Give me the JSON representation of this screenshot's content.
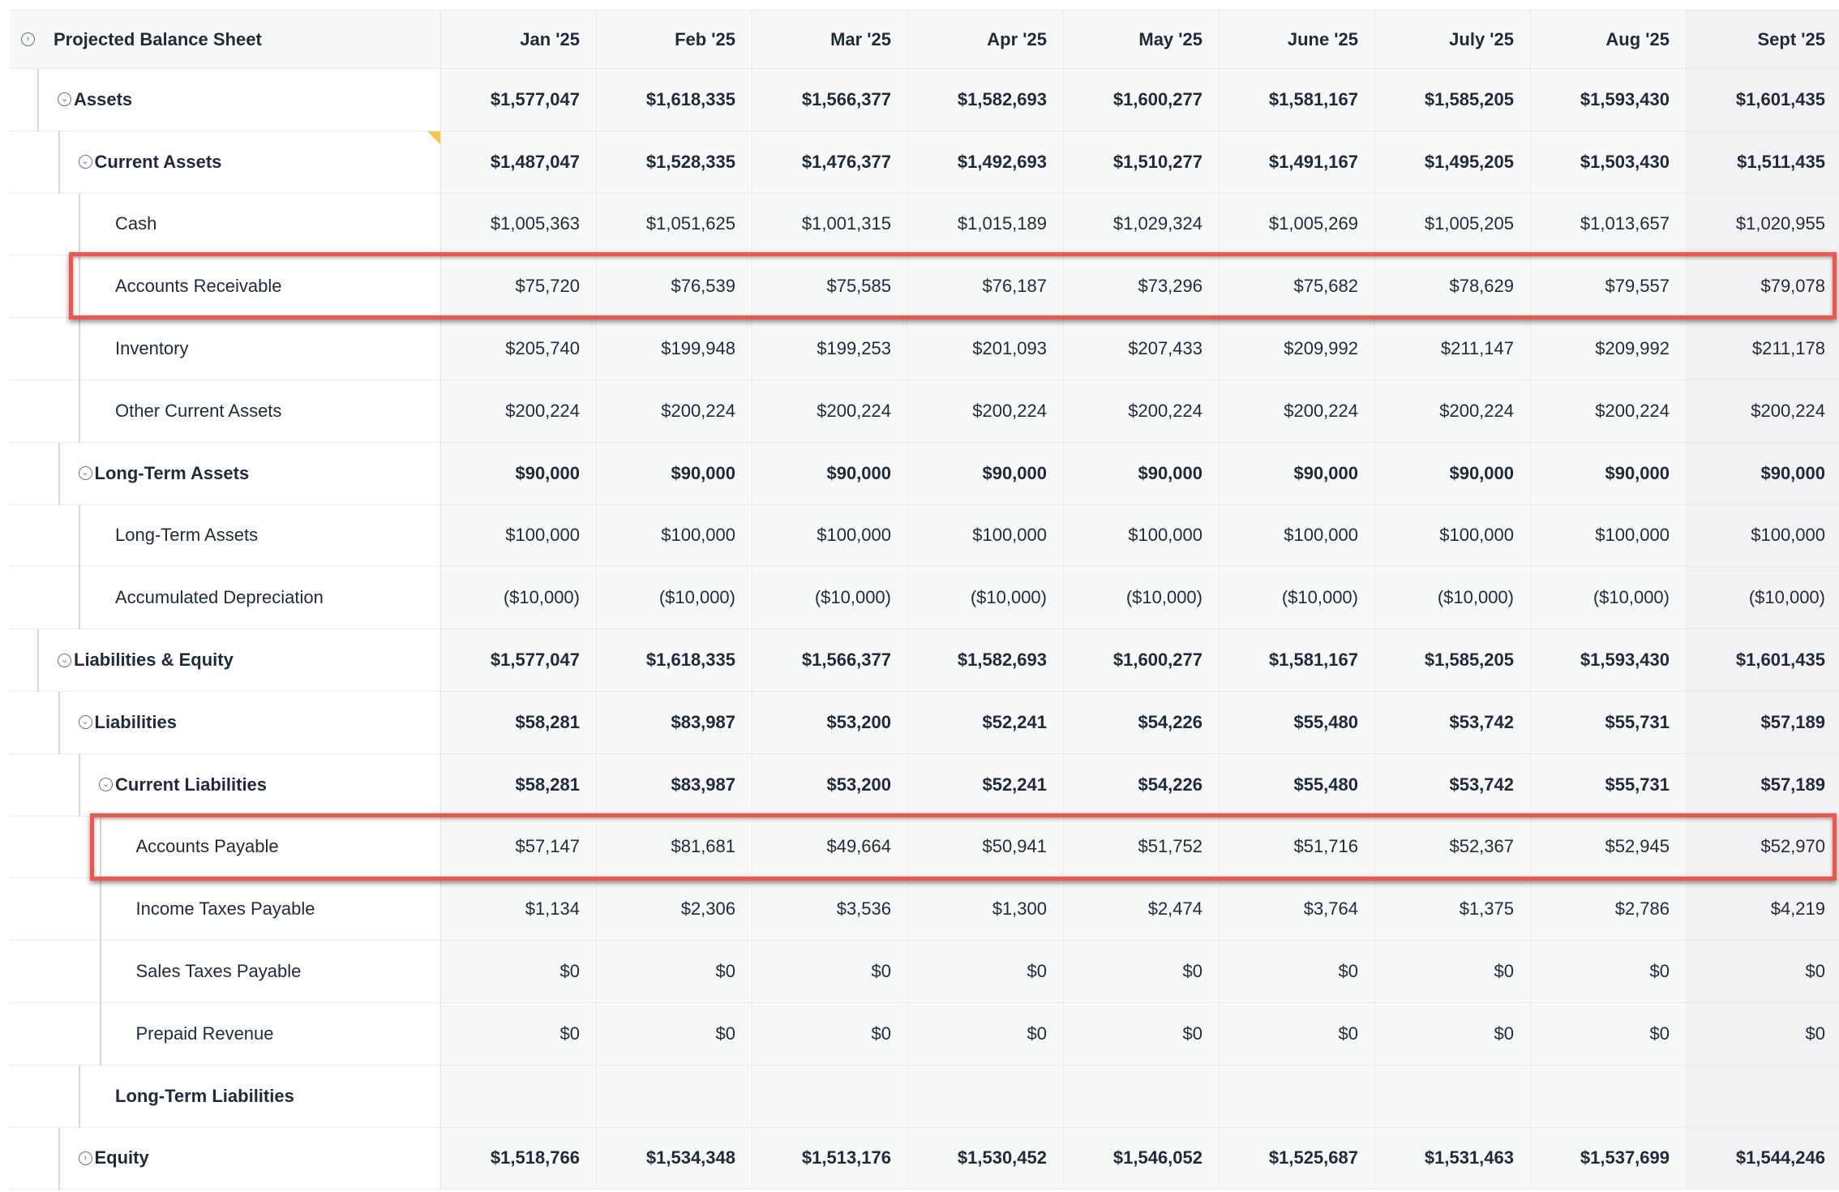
{
  "title": "Projected Balance Sheet",
  "columns": [
    "Jan '25",
    "Feb '25",
    "Mar '25",
    "Apr '25",
    "May '25",
    "June '25",
    "July '25",
    "Aug '25",
    "Sept '25"
  ],
  "colors": {
    "highlight": "#f2564a",
    "flag": "#f5c842"
  },
  "rows": [
    {
      "label": "Assets",
      "level": 1,
      "bold": true,
      "toggle": "expanded",
      "values": [
        "$1,577,047",
        "$1,618,335",
        "$1,566,377",
        "$1,582,693",
        "$1,600,277",
        "$1,581,167",
        "$1,585,205",
        "$1,593,430",
        "$1,601,435"
      ]
    },
    {
      "label": "Current Assets",
      "level": 2,
      "bold": true,
      "toggle": "expanded",
      "flag": true,
      "values": [
        "$1,487,047",
        "$1,528,335",
        "$1,476,377",
        "$1,492,693",
        "$1,510,277",
        "$1,491,167",
        "$1,495,205",
        "$1,503,430",
        "$1,511,435"
      ]
    },
    {
      "label": "Cash",
      "level": 3,
      "bold": false,
      "values": [
        "$1,005,363",
        "$1,051,625",
        "$1,001,315",
        "$1,015,189",
        "$1,029,324",
        "$1,005,269",
        "$1,005,205",
        "$1,013,657",
        "$1,020,955"
      ]
    },
    {
      "label": "Accounts Receivable",
      "level": 3,
      "bold": false,
      "highlighted": true,
      "values": [
        "$75,720",
        "$76,539",
        "$75,585",
        "$76,187",
        "$73,296",
        "$75,682",
        "$78,629",
        "$79,557",
        "$79,078"
      ]
    },
    {
      "label": "Inventory",
      "level": 3,
      "bold": false,
      "values": [
        "$205,740",
        "$199,948",
        "$199,253",
        "$201,093",
        "$207,433",
        "$209,992",
        "$211,147",
        "$209,992",
        "$211,178"
      ]
    },
    {
      "label": "Other Current Assets",
      "level": 3,
      "bold": false,
      "values": [
        "$200,224",
        "$200,224",
        "$200,224",
        "$200,224",
        "$200,224",
        "$200,224",
        "$200,224",
        "$200,224",
        "$200,224"
      ]
    },
    {
      "label": "Long-Term Assets",
      "level": 2,
      "bold": true,
      "toggle": "expanded",
      "values": [
        "$90,000",
        "$90,000",
        "$90,000",
        "$90,000",
        "$90,000",
        "$90,000",
        "$90,000",
        "$90,000",
        "$90,000"
      ]
    },
    {
      "label": "Long-Term Assets",
      "level": 3,
      "bold": false,
      "values": [
        "$100,000",
        "$100,000",
        "$100,000",
        "$100,000",
        "$100,000",
        "$100,000",
        "$100,000",
        "$100,000",
        "$100,000"
      ]
    },
    {
      "label": "Accumulated Depreciation",
      "level": 3,
      "bold": false,
      "values": [
        "($10,000)",
        "($10,000)",
        "($10,000)",
        "($10,000)",
        "($10,000)",
        "($10,000)",
        "($10,000)",
        "($10,000)",
        "($10,000)"
      ]
    },
    {
      "label": "Liabilities & Equity",
      "level": 1,
      "bold": true,
      "toggle": "expanded",
      "values": [
        "$1,577,047",
        "$1,618,335",
        "$1,566,377",
        "$1,582,693",
        "$1,600,277",
        "$1,581,167",
        "$1,585,205",
        "$1,593,430",
        "$1,601,435"
      ]
    },
    {
      "label": "Liabilities",
      "level": 2,
      "bold": true,
      "toggle": "expanded",
      "values": [
        "$58,281",
        "$83,987",
        "$53,200",
        "$52,241",
        "$54,226",
        "$55,480",
        "$53,742",
        "$55,731",
        "$57,189"
      ]
    },
    {
      "label": "Current Liabilities",
      "level": 3,
      "bold": true,
      "toggle": "expanded",
      "values": [
        "$58,281",
        "$83,987",
        "$53,200",
        "$52,241",
        "$54,226",
        "$55,480",
        "$53,742",
        "$55,731",
        "$57,189"
      ]
    },
    {
      "label": "Accounts Payable",
      "level": 4,
      "bold": false,
      "highlighted": true,
      "values": [
        "$57,147",
        "$81,681",
        "$49,664",
        "$50,941",
        "$51,752",
        "$51,716",
        "$52,367",
        "$52,945",
        "$52,970"
      ]
    },
    {
      "label": "Income Taxes Payable",
      "level": 4,
      "bold": false,
      "values": [
        "$1,134",
        "$2,306",
        "$3,536",
        "$1,300",
        "$2,474",
        "$3,764",
        "$1,375",
        "$2,786",
        "$4,219"
      ]
    },
    {
      "label": "Sales Taxes Payable",
      "level": 4,
      "bold": false,
      "values": [
        "$0",
        "$0",
        "$0",
        "$0",
        "$0",
        "$0",
        "$0",
        "$0",
        "$0"
      ]
    },
    {
      "label": "Prepaid Revenue",
      "level": 4,
      "bold": false,
      "values": [
        "$0",
        "$0",
        "$0",
        "$0",
        "$0",
        "$0",
        "$0",
        "$0",
        "$0"
      ]
    },
    {
      "label": "Long-Term Liabilities",
      "level": 3,
      "bold": true,
      "values": [
        "",
        "",
        "",
        "",
        "",
        "",
        "",
        "",
        ""
      ]
    },
    {
      "label": "Equity",
      "level": 2,
      "bold": true,
      "toggle": "collapsed",
      "values": [
        "$1,518,766",
        "$1,534,348",
        "$1,513,176",
        "$1,530,452",
        "$1,546,052",
        "$1,525,687",
        "$1,531,463",
        "$1,537,699",
        "$1,544,246"
      ]
    }
  ]
}
